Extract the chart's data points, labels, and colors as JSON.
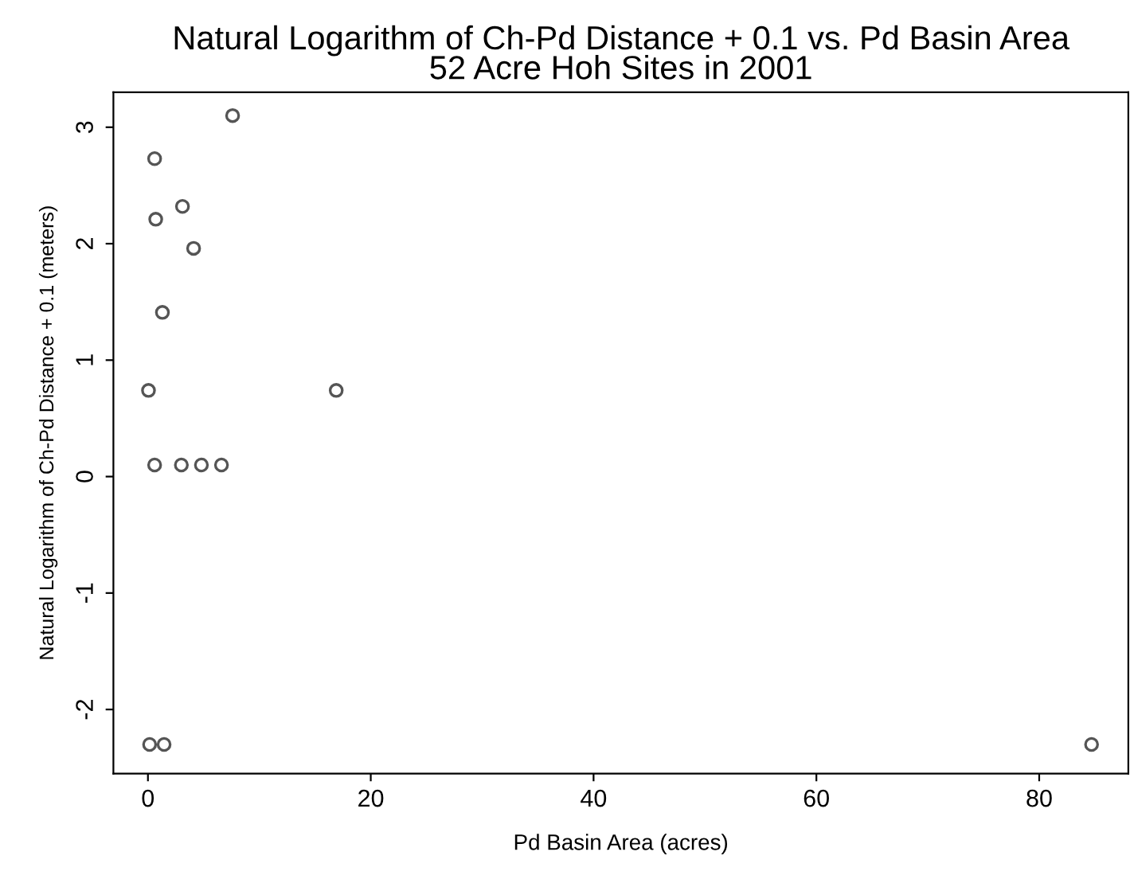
{
  "chart_data": {
    "type": "scatter",
    "title": "Natural Logarithm of Ch-Pd Distance + 0.1 vs. Pd Basin Area\n52 Acre Hoh Sites in 2001",
    "xlabel": "Pd Basin Area (acres)",
    "ylabel": "Natural Logarithm of Ch-Pd Distance + 0.1 (meters)",
    "series": [
      {
        "color": "#555555",
        "x": [
          7.6,
          0.6,
          3.1,
          0.7,
          4.1,
          1.3,
          0.05,
          16.9,
          0.6,
          3.0,
          4.8,
          6.6,
          0.15,
          1.45,
          84.7
        ],
        "values": [
          3.1,
          2.73,
          2.32,
          2.21,
          1.96,
          1.41,
          0.74,
          0.74,
          0.1,
          0.1,
          0.1,
          0.1,
          -2.3,
          -2.3,
          -2.3
        ]
      }
    ],
    "marker": "circle",
    "grid": false,
    "xlim": [
      -3.1,
      88
    ],
    "ylim": [
      -2.55,
      3.3
    ],
    "xticks": [
      0,
      20,
      40,
      60,
      80
    ],
    "yticks": [
      -2,
      -1,
      0,
      1,
      2,
      3
    ]
  }
}
